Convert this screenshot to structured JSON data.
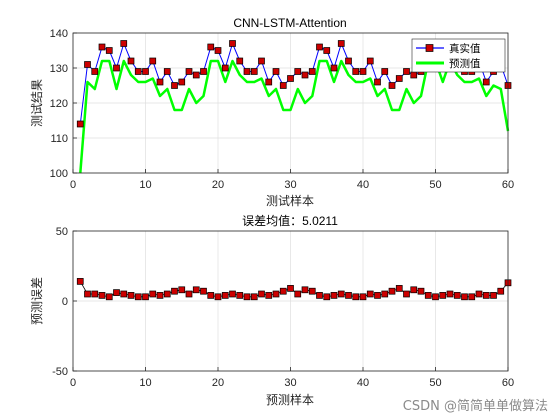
{
  "chart_data": [
    {
      "type": "line",
      "title": "CNN-LSTM-Attention",
      "xlabel": "测试样本",
      "ylabel": "测试结果",
      "xlim": [
        0,
        60
      ],
      "ylim": [
        100,
        140
      ],
      "xticks": [
        0,
        10,
        20,
        30,
        40,
        50,
        60
      ],
      "yticks": [
        100,
        110,
        120,
        130,
        140
      ],
      "grid": true,
      "legend_position": "top-right",
      "x": [
        1,
        2,
        3,
        4,
        5,
        6,
        7,
        8,
        9,
        10,
        11,
        12,
        13,
        14,
        15,
        16,
        17,
        18,
        19,
        20,
        21,
        22,
        23,
        24,
        25,
        26,
        27,
        28,
        29,
        30,
        31,
        32,
        33,
        34,
        35,
        36,
        37,
        38,
        39,
        40,
        41,
        42,
        43,
        44,
        45,
        46,
        47,
        48,
        49,
        50,
        51,
        52,
        53,
        54,
        55,
        56,
        57,
        58,
        59,
        60
      ],
      "series": [
        {
          "name": "真实值",
          "color": "#0000ff",
          "marker_color": "#cc0000",
          "values": [
            114,
            131,
            129,
            136,
            135,
            130,
            137,
            132,
            129,
            129,
            132,
            126,
            129,
            125,
            126,
            129,
            128,
            129,
            136,
            135,
            130,
            137,
            132,
            129,
            129,
            132,
            126,
            129,
            125,
            127,
            129,
            128,
            129,
            136,
            135,
            130,
            137,
            132,
            129,
            129,
            132,
            126,
            129,
            125,
            127,
            129,
            128,
            129,
            136,
            135,
            130,
            137,
            132,
            129,
            129,
            132,
            126,
            129,
            131,
            125
          ]
        },
        {
          "name": "预测值",
          "color": "#00ff00",
          "values": [
            100,
            126,
            124,
            132,
            132,
            124,
            132,
            128,
            126,
            126,
            127,
            122,
            124,
            118,
            118,
            124,
            120,
            122,
            132,
            132,
            126,
            132,
            128,
            126,
            126,
            127,
            122,
            124,
            118,
            118,
            124,
            120,
            122,
            132,
            132,
            126,
            132,
            128,
            126,
            126,
            127,
            122,
            124,
            118,
            118,
            124,
            120,
            122,
            132,
            132,
            126,
            132,
            128,
            126,
            126,
            127,
            122,
            125,
            124,
            112
          ]
        }
      ]
    },
    {
      "type": "scatter",
      "title": "误差均值：5.0211",
      "xlabel": "预测样本",
      "ylabel": "预测误差",
      "xlim": [
        0,
        60
      ],
      "ylim": [
        -50,
        50
      ],
      "xticks": [
        0,
        10,
        20,
        30,
        40,
        50,
        60
      ],
      "yticks": [
        -50,
        0,
        50
      ],
      "grid": true,
      "x": [
        1,
        2,
        3,
        4,
        5,
        6,
        7,
        8,
        9,
        10,
        11,
        12,
        13,
        14,
        15,
        16,
        17,
        18,
        19,
        20,
        21,
        22,
        23,
        24,
        25,
        26,
        27,
        28,
        29,
        30,
        31,
        32,
        33,
        34,
        35,
        36,
        37,
        38,
        39,
        40,
        41,
        42,
        43,
        44,
        45,
        46,
        47,
        48,
        49,
        50,
        51,
        52,
        53,
        54,
        55,
        56,
        57,
        58,
        59,
        60
      ],
      "series": [
        {
          "color": "#000000",
          "marker_color": "#cc0000",
          "values": [
            14,
            5,
            5,
            4,
            3,
            6,
            5,
            4,
            3,
            3,
            5,
            4,
            5,
            7,
            8,
            5,
            8,
            7,
            4,
            3,
            4,
            5,
            4,
            3,
            3,
            5,
            4,
            5,
            7,
            9,
            5,
            8,
            7,
            4,
            3,
            4,
            5,
            4,
            3,
            3,
            5,
            4,
            5,
            7,
            9,
            5,
            8,
            7,
            4,
            3,
            4,
            5,
            4,
            3,
            3,
            5,
            4,
            4,
            7,
            13
          ]
        }
      ]
    }
  ],
  "watermark": "CSDN @简简单单做算法"
}
